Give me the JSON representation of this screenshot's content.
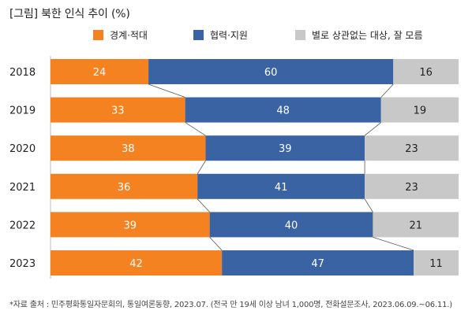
{
  "title": "[그림] 북한 인식 추이 (%)",
  "note": "*자료 출처 : 민주평화통일자문회의, 통일여론동향, 2023.07. (전국 만 19세 이상 남녀 1,000명, 전화설문조사, 2023.06.09.~06.11.)",
  "chart_data": {
    "type": "bar",
    "orientation": "horizontal",
    "stacked": true,
    "categories": [
      "2018",
      "2019",
      "2020",
      "2021",
      "2022",
      "2023"
    ],
    "series": [
      {
        "name": "경계·적대",
        "color": "#f58220",
        "values": [
          24,
          33,
          38,
          36,
          39,
          42
        ]
      },
      {
        "name": "협력·지원",
        "color": "#3a63a3",
        "values": [
          60,
          48,
          39,
          41,
          40,
          47
        ]
      },
      {
        "name": "별로 상관없는 대상, 잘 모름",
        "color": "#c8c8c8",
        "values": [
          16,
          19,
          23,
          23,
          21,
          11
        ]
      }
    ],
    "xlim": [
      0,
      100
    ],
    "connector_lines": true,
    "legend_position": "top"
  }
}
